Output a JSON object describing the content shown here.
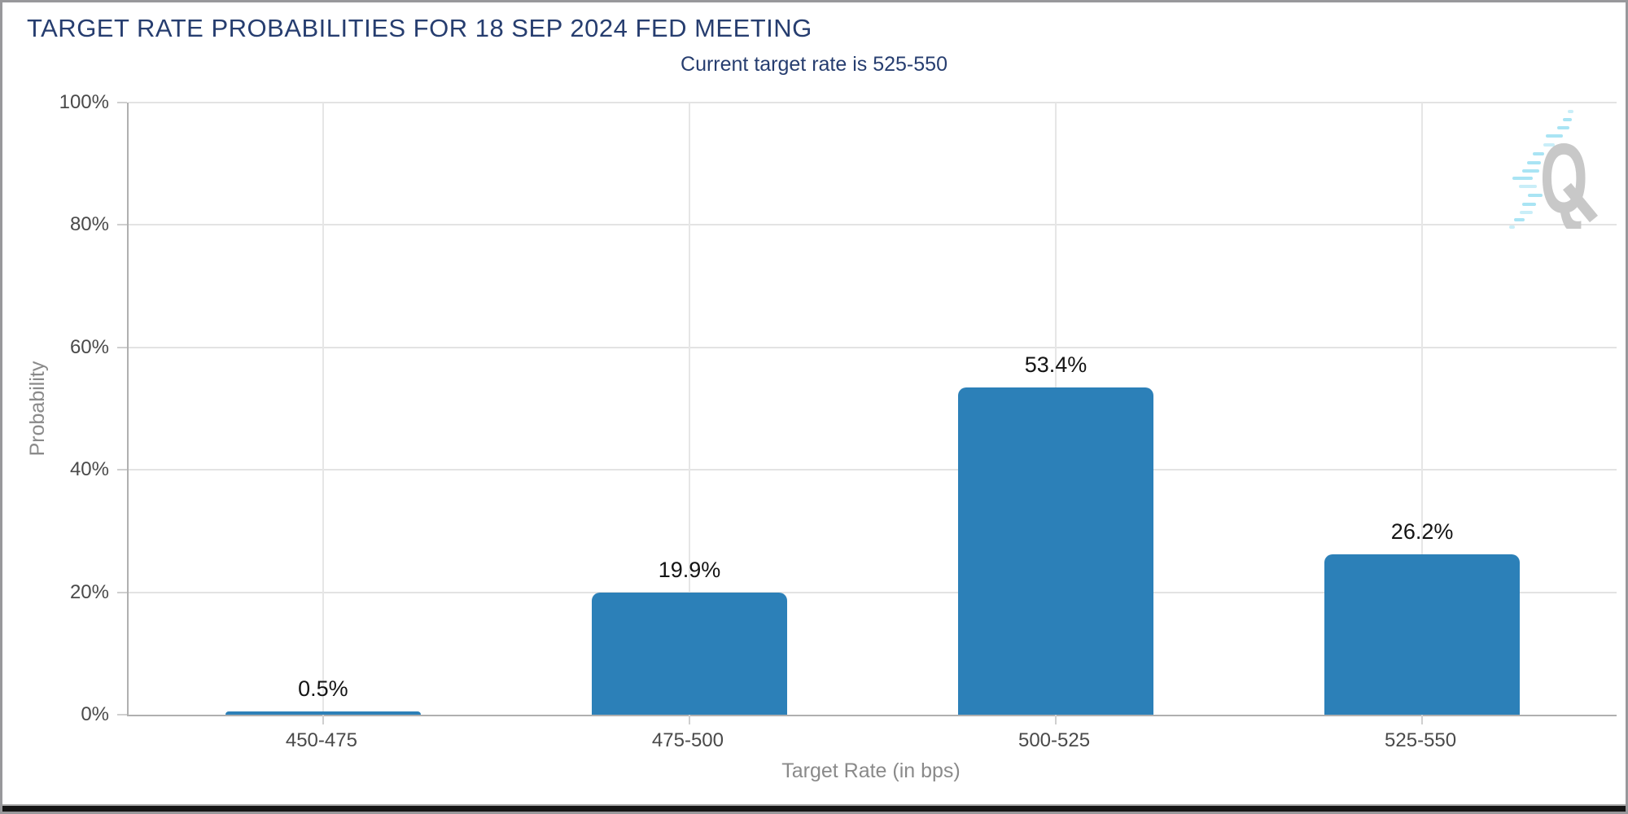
{
  "header": {
    "title": "TARGET RATE PROBABILITIES FOR 18 SEP 2024 FED MEETING",
    "subtitle": "Current target rate is 525-550"
  },
  "chart_data": {
    "type": "bar",
    "title": "TARGET RATE PROBABILITIES FOR 18 SEP 2024 FED MEETING",
    "subtitle": "Current target rate is 525-550",
    "categories": [
      "450-475",
      "475-500",
      "500-525",
      "525-550"
    ],
    "values": [
      0.5,
      19.9,
      53.4,
      26.2
    ],
    "value_labels": [
      "0.5%",
      "19.9%",
      "53.4%",
      "26.2%"
    ],
    "xlabel": "Target Rate (in bps)",
    "ylabel": "Probability",
    "ylim": [
      0,
      100
    ],
    "yticks": [
      "100%",
      "80%",
      "60%",
      "40%",
      "20%",
      "0%"
    ],
    "grid": true,
    "legend_position": "none",
    "bar_color": "#2c80b8"
  },
  "watermark": {
    "letter": "Q"
  },
  "colors": {
    "title_navy": "#263d6f",
    "bar_blue": "#2c80b8",
    "axis_line_gray": "#b0b0b0",
    "gridline_gray": "#e3e3e3",
    "tick_label_gray": "#4a4a4a",
    "axis_title_gray": "#8a8a8a",
    "watermark_letter_gray": "#c8c8c8",
    "watermark_dash_cyan": "#a9e4f4"
  }
}
